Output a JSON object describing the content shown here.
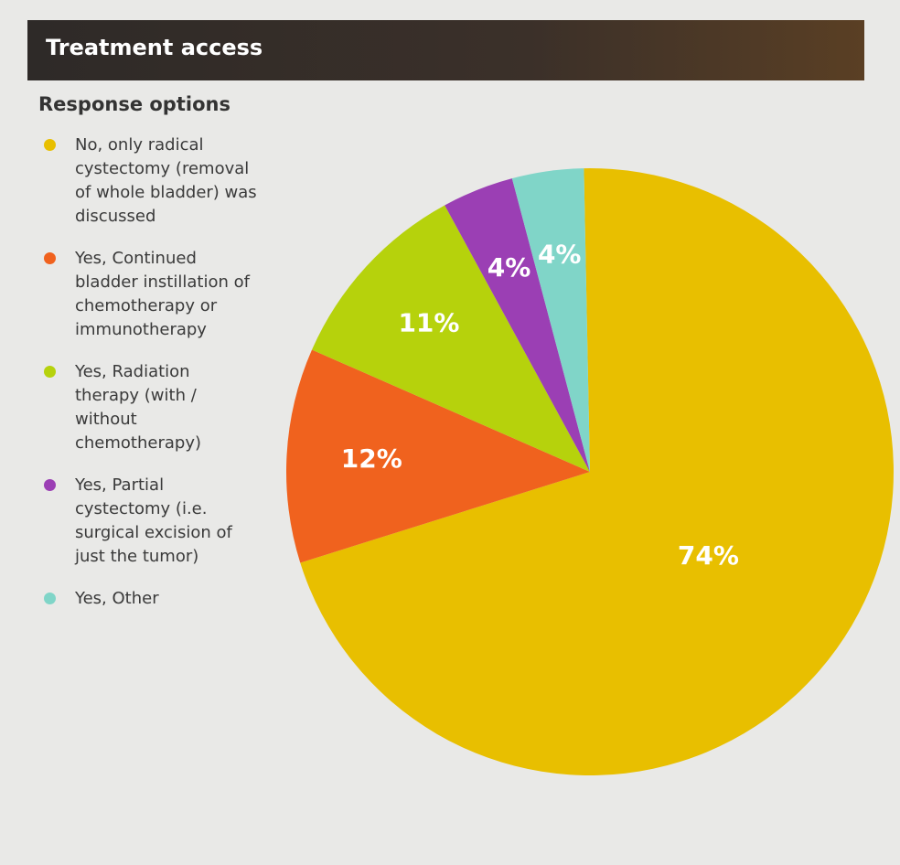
{
  "chart_data": {
    "type": "pie",
    "title": "Treatment access",
    "legend_title": "Response options",
    "categories": [
      "No, only radical cystectomy (removal of whole bladder) was discussed",
      "Yes, Continued bladder instillation of chemotherapy or immunotherapy",
      "Yes, Radiation therapy (with / without chemotherapy)",
      "Yes, Partial cystectomy (i.e. surgical excision of just the tumor)",
      "Yes, Other"
    ],
    "values": [
      74,
      12,
      11,
      4,
      4
    ],
    "value_labels": [
      "74%",
      "12%",
      "11%",
      "4%",
      "4%"
    ],
    "colors": [
      "#e8bf00",
      "#f0621e",
      "#b6d20c",
      "#9b3fb4",
      "#80d5c8"
    ]
  }
}
